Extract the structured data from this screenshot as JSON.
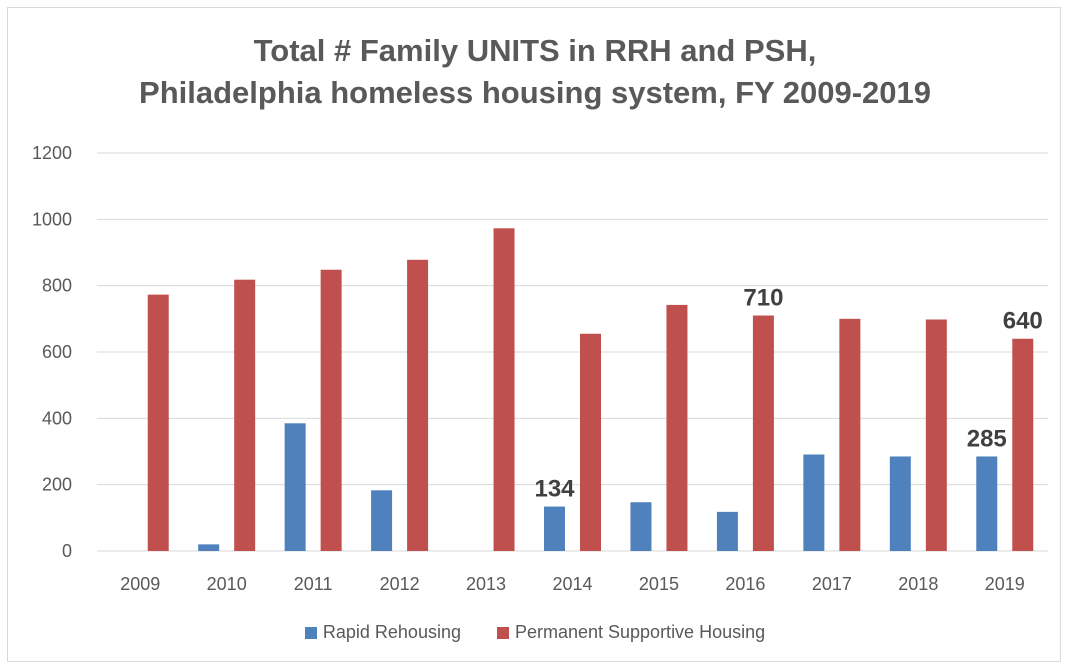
{
  "chart_data": {
    "type": "bar",
    "title_lines": [
      "Total # Family UNITS in RRH and PSH,",
      "Philadelphia homeless housing system, FY 2009-2019"
    ],
    "categories": [
      "2009",
      "2010",
      "2011",
      "2012",
      "2013",
      "2014",
      "2015",
      "2016",
      "2017",
      "2018",
      "2019"
    ],
    "series": [
      {
        "name": "Rapid Rehousing",
        "color": "#4f81bd",
        "values": [
          0,
          20,
          385,
          183,
          0,
          134,
          147,
          118,
          291,
          285,
          285
        ]
      },
      {
        "name": "Permanent Supportive Housing",
        "color": "#c0504d",
        "values": [
          773,
          818,
          848,
          878,
          973,
          655,
          742,
          710,
          700,
          698,
          640
        ]
      }
    ],
    "ylim": [
      0,
      1200
    ],
    "yticks": [
      0,
      200,
      400,
      600,
      800,
      1000,
      1200
    ],
    "grid": true,
    "legend_position": "bottom",
    "data_labels": [
      {
        "series": 0,
        "index": 5,
        "text": "134"
      },
      {
        "series": 1,
        "index": 7,
        "text": "710"
      },
      {
        "series": 0,
        "index": 10,
        "text": "285"
      },
      {
        "series": 1,
        "index": 10,
        "text": "640"
      }
    ]
  }
}
